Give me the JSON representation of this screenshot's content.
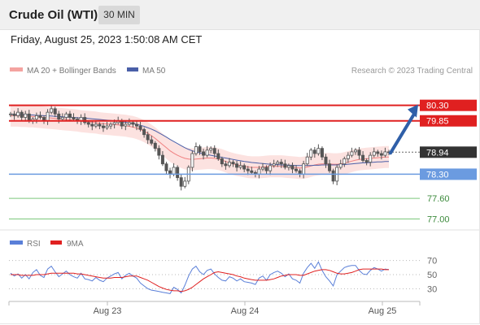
{
  "header": {
    "title": "Crude Oil (WTI)",
    "timeframe": "30 MIN",
    "datetime": "Friday, August 25, 2023 1:50:08 AM CET"
  },
  "legend": {
    "bollinger": "MA 20 + Bollinger Bands",
    "ma50": "MA 50",
    "credit": "Research © 2023 Trading Central"
  },
  "rsi_legend": {
    "rsi": "RSI",
    "ma": "9MA"
  },
  "colors": {
    "resistance": "#e02020",
    "support_strong": "#6b9be0",
    "support": "#7cc77c",
    "candle": "#555555",
    "bollinger_fill": "#fbd8d6",
    "ma20": "#f08080",
    "ma50": "#4a5fa8",
    "rsi": "#5a7fd8",
    "rsi_ma": "#e02020",
    "forecast_arrow": "#2f5fa8",
    "current_price": "#333333"
  },
  "chart_data": [
    {
      "type": "candlestick",
      "title": "Crude Oil (WTI)",
      "timeframe": "30 MIN",
      "x_labels": [
        "Aug 23",
        "Aug 24",
        "Aug 25"
      ],
      "ylim": [
        76.8,
        81.0
      ],
      "close": [
        80.05,
        80.0,
        80.1,
        79.95,
        80.05,
        79.85,
        79.9,
        80.0,
        79.95,
        79.85,
        80.1,
        80.2,
        80.05,
        79.9,
        79.95,
        80.05,
        79.95,
        79.9,
        79.85,
        79.95,
        79.8,
        79.75,
        79.7,
        79.75,
        79.7,
        79.65,
        79.7,
        79.75,
        79.8,
        79.85,
        79.7,
        79.75,
        79.8,
        79.75,
        79.7,
        79.6,
        79.45,
        79.3,
        79.2,
        79.05,
        78.85,
        78.6,
        78.4,
        78.3,
        78.5,
        78.2,
        77.95,
        78.1,
        78.5,
        78.9,
        79.1,
        78.95,
        78.85,
        79.0,
        79.05,
        78.9,
        78.75,
        78.6,
        78.55,
        78.65,
        78.6,
        78.5,
        78.55,
        78.45,
        78.4,
        78.35,
        78.3,
        78.45,
        78.5,
        78.4,
        78.55,
        78.6,
        78.65,
        78.6,
        78.5,
        78.55,
        78.45,
        78.4,
        78.3,
        78.6,
        78.8,
        79.0,
        78.9,
        79.05,
        78.8,
        78.6,
        78.4,
        78.1,
        78.5,
        78.6,
        78.75,
        78.85,
        78.95,
        79.0,
        78.85,
        78.7,
        78.65,
        78.85,
        78.95,
        78.9,
        78.85,
        78.95,
        78.94
      ],
      "series": [
        {
          "name": "MA 20 + Bollinger Bands",
          "values": [
            80.0,
            80.0,
            80.0,
            79.99,
            79.99,
            79.98,
            79.98,
            79.97,
            79.96,
            79.95,
            79.94,
            79.93,
            79.92,
            79.91,
            79.9,
            79.89,
            79.88,
            79.87,
            79.86,
            79.84,
            79.83,
            79.82,
            79.81,
            79.8,
            79.78,
            79.77,
            79.76,
            79.75,
            79.74,
            79.73,
            79.72,
            79.71,
            79.69,
            79.67,
            79.64,
            79.6,
            79.55,
            79.49,
            79.42,
            79.34,
            79.25,
            79.16,
            79.07,
            78.98,
            78.91,
            78.85,
            78.8,
            78.76,
            78.74,
            78.73,
            78.74,
            78.75,
            78.76,
            78.77,
            78.77,
            78.76,
            78.74,
            78.71,
            78.67,
            78.63,
            78.6,
            78.57,
            78.55,
            78.53,
            78.51,
            78.5,
            78.5,
            78.5,
            78.51,
            78.52,
            78.53,
            78.53,
            78.53,
            78.53,
            78.52,
            78.51,
            78.5,
            78.49,
            78.48,
            78.49,
            78.51,
            78.54,
            78.57,
            78.59,
            78.6,
            78.6,
            78.6,
            78.59,
            78.59,
            78.6,
            78.62,
            78.65,
            78.68,
            78.71,
            78.73,
            78.74,
            78.75,
            78.76,
            78.77,
            78.78,
            78.79,
            78.8,
            78.8
          ]
        },
        {
          "name": "MA 50",
          "values": [
            80.05,
            80.04,
            80.04,
            80.03,
            80.03,
            80.02,
            80.02,
            80.01,
            80.01,
            80.0,
            79.99,
            79.99,
            79.98,
            79.98,
            79.97,
            79.96,
            79.96,
            79.95,
            79.94,
            79.93,
            79.93,
            79.92,
            79.91,
            79.9,
            79.89,
            79.88,
            79.87,
            79.86,
            79.85,
            79.84,
            79.82,
            79.81,
            79.79,
            79.77,
            79.75,
            79.72,
            79.69,
            79.65,
            79.61,
            79.56,
            79.5,
            79.44,
            79.38,
            79.31,
            79.25,
            79.19,
            79.13,
            79.07,
            79.02,
            78.98,
            78.95,
            78.92,
            78.89,
            78.87,
            78.85,
            78.83,
            78.81,
            78.79,
            78.77,
            78.75,
            78.73,
            78.71,
            78.69,
            78.67,
            78.66,
            78.64,
            78.63,
            78.62,
            78.61,
            78.6,
            78.59,
            78.58,
            78.58,
            78.57,
            78.57,
            78.56,
            78.56,
            78.55,
            78.55,
            78.55,
            78.55,
            78.55,
            78.56,
            78.56,
            78.57,
            78.57,
            78.57,
            78.57,
            78.57,
            78.58,
            78.58,
            78.59,
            78.6,
            78.61,
            78.62,
            78.63,
            78.63,
            78.64,
            78.65,
            78.66,
            78.66,
            78.67,
            78.67
          ]
        }
      ],
      "levels": [
        {
          "label": "80.30",
          "value": 80.3,
          "kind": "resistance"
        },
        {
          "label": "79.85",
          "value": 79.85,
          "kind": "resistance"
        },
        {
          "label": "78.94",
          "value": 78.94,
          "kind": "current"
        },
        {
          "label": "78.30",
          "value": 78.3,
          "kind": "support_strong"
        },
        {
          "label": "77.60",
          "value": 77.6,
          "kind": "support"
        },
        {
          "label": "77.00",
          "value": 77.0,
          "kind": "support"
        }
      ],
      "forecast": {
        "from": 78.94,
        "to": 80.3
      }
    },
    {
      "type": "line",
      "title": "RSI",
      "ylim": [
        20,
        80
      ],
      "y_ticks": [
        70,
        50,
        30
      ],
      "series": [
        {
          "name": "RSI",
          "values": [
            52,
            48,
            51,
            45,
            50,
            44,
            53,
            57,
            49,
            46,
            58,
            62,
            54,
            47,
            51,
            55,
            50,
            47,
            45,
            52,
            44,
            43,
            41,
            46,
            42,
            40,
            45,
            48,
            51,
            53,
            44,
            49,
            52,
            48,
            45,
            38,
            34,
            30,
            28,
            27,
            26,
            25,
            24,
            23,
            32,
            29,
            24,
            35,
            48,
            58,
            62,
            54,
            50,
            56,
            58,
            51,
            46,
            42,
            41,
            47,
            45,
            41,
            44,
            40,
            39,
            38,
            36,
            45,
            48,
            42,
            50,
            53,
            55,
            52,
            47,
            51,
            44,
            42,
            38,
            52,
            60,
            66,
            59,
            68,
            56,
            47,
            41,
            34,
            50,
            55,
            60,
            62,
            63,
            63,
            56,
            51,
            50,
            56,
            60,
            58,
            55,
            58,
            57
          ]
        },
        {
          "name": "9MA",
          "values": [
            50,
            50,
            50,
            49,
            49,
            49,
            49,
            50,
            50,
            50,
            51,
            52,
            52,
            52,
            52,
            52,
            52,
            52,
            51,
            51,
            50,
            49,
            48,
            47,
            46,
            45,
            45,
            45,
            46,
            46,
            46,
            47,
            48,
            48,
            48,
            46,
            44,
            42,
            39,
            36,
            33,
            31,
            29,
            28,
            27,
            27,
            26,
            27,
            29,
            32,
            36,
            40,
            44,
            47,
            50,
            53,
            54,
            53,
            52,
            51,
            50,
            48,
            47,
            45,
            44,
            43,
            42,
            42,
            42,
            42,
            43,
            44,
            46,
            48,
            49,
            50,
            50,
            50,
            49,
            49,
            51,
            53,
            55,
            56,
            57,
            57,
            56,
            54,
            52,
            51,
            51,
            52,
            53,
            55,
            57,
            58,
            58,
            58,
            58,
            58,
            58,
            57,
            57
          ]
        }
      ]
    }
  ]
}
